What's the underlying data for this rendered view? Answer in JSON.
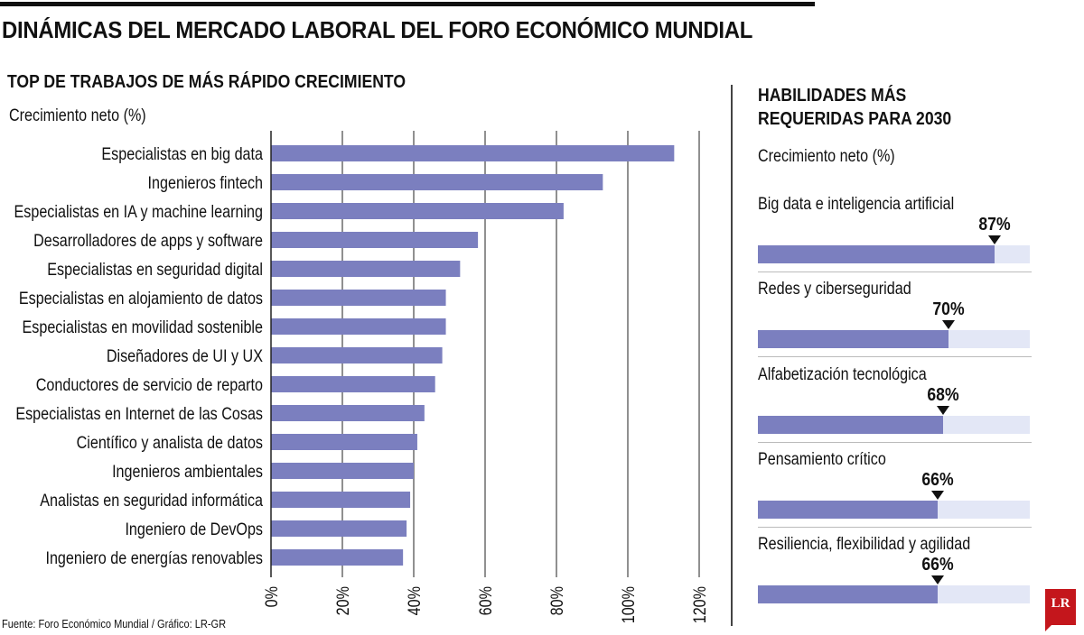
{
  "header": {
    "title": "DINÁMICAS DEL MERCADO LABORAL DEL FORO ECONÓMICO MUNDIAL"
  },
  "left_panel": {
    "title": "TOP DE TRABAJOS DE MÁS RÁPIDO CRECIMIENTO",
    "subtitle": "Crecimiento neto (%)"
  },
  "right_panel": {
    "title_line1": "HABILIDADES MÁS",
    "title_line2": "REQUERIDAS PARA 2030",
    "subtitle": "Crecimiento neto (%)"
  },
  "footer": {
    "source": "Fuente: Foro Económico Mundial / Gráfico: LR-GR",
    "logo_text": "LR"
  },
  "colors": {
    "bar": "#7b7fbf",
    "track": "#e3e7f6",
    "text": "#111111",
    "grid": "#222222",
    "logo": "#c4161c"
  },
  "chart_data": [
    {
      "type": "bar",
      "orientation": "horizontal",
      "title": "TOP DE TRABAJOS DE MÁS RÁPIDO CRECIMIENTO",
      "xlabel": "Crecimiento neto (%)",
      "categories": [
        "Especialistas en big data",
        "Ingenieros fintech",
        "Especialistas en IA y machine learning",
        "Desarrolladores de apps y software",
        "Especialistas en seguridad digital",
        "Especialistas en alojamiento de datos",
        "Especialistas en movilidad sostenible",
        "Diseñadores de UI y UX",
        "Conductores de servicio de reparto",
        "Especialistas en Internet de las Cosas",
        "Científico y analista de datos",
        "Ingenieros ambientales",
        "Analistas en seguridad informática",
        "Ingeniero de DevOps",
        "Ingeniero de energías renovables"
      ],
      "values": [
        113,
        93,
        82,
        58,
        53,
        49,
        49,
        48,
        46,
        43,
        41,
        40,
        39,
        38,
        37
      ],
      "xlim": [
        0,
        120
      ],
      "xticks": [
        0,
        20,
        40,
        60,
        80,
        100,
        120
      ],
      "xtick_labels": [
        "0%",
        "20%",
        "40%",
        "60%",
        "80%",
        "100%",
        "120%"
      ],
      "grid": true
    },
    {
      "type": "bar",
      "orientation": "horizontal",
      "title": "HABILIDADES MÁS REQUERIDAS PARA 2030",
      "xlabel": "Crecimiento neto (%)",
      "categories": [
        "Big data e inteligencia artificial",
        "Redes y ciberseguridad",
        "Alfabetización tecnológica",
        "Pensamiento crítico",
        "Resiliencia, flexibilidad y agilidad"
      ],
      "values": [
        87,
        70,
        68,
        66,
        66
      ],
      "value_labels": [
        "87%",
        "70%",
        "68%",
        "66%",
        "66%"
      ],
      "xlim": [
        0,
        100
      ]
    }
  ]
}
